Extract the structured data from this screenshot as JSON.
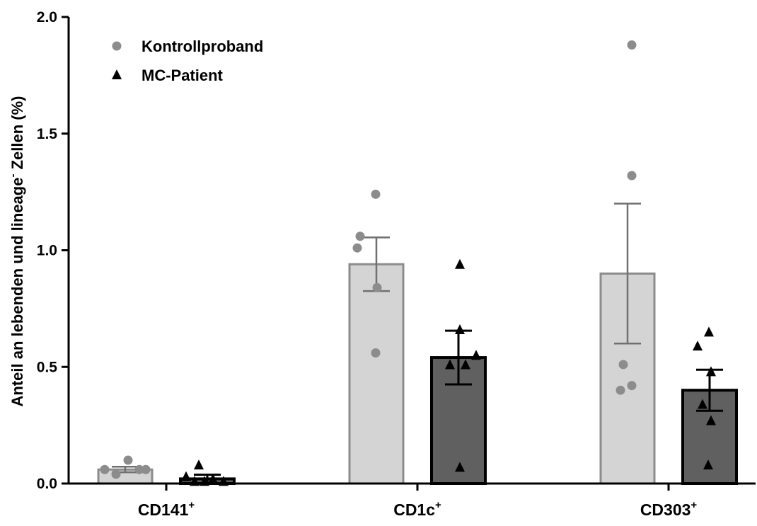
{
  "chart_data": {
    "type": "bar",
    "ylabel": "Anteil an lebenden und lineage",
    "ylabel_sup": "-",
    "ylabel_suffix": " Zellen (%)",
    "ylim": [
      0,
      2.0
    ],
    "yticks": [
      "0.0",
      "0.5",
      "1.0",
      "1.5",
      "2.0"
    ],
    "categories": [
      {
        "base": "CD141",
        "sup": "+"
      },
      {
        "base": "CD1c",
        "sup": "+"
      },
      {
        "base": "CD303",
        "sup": "+"
      }
    ],
    "legend_position": "top-left",
    "grid": false,
    "series": [
      {
        "name": "Kontrollproband",
        "marker": "circle",
        "bar_fill": "#d4d4d4",
        "bar_stroke": "#8c8c8c",
        "point_color": "#8c8c8c",
        "errorbar_color": "#707070",
        "means": [
          0.06,
          0.94,
          0.9
        ],
        "sem": [
          0.012,
          0.115,
          0.3
        ],
        "points": [
          [
            0.06,
            0.04,
            0.1,
            0.06,
            0.06
          ],
          [
            1.24,
            1.06,
            1.01,
            0.84,
            0.56
          ],
          [
            1.88,
            1.32,
            0.51,
            0.42,
            0.4
          ]
        ]
      },
      {
        "name": "MC-Patient",
        "marker": "triangle",
        "bar_fill": "#606060",
        "bar_stroke": "#000000",
        "point_color": "#000000",
        "errorbar_color": "#000000",
        "means": [
          0.02,
          0.54,
          0.4
        ],
        "sem": [
          0.018,
          0.115,
          0.088
        ],
        "points": [
          [
            0.03,
            0.01,
            0.01,
            0.02,
            0.08,
            0.01
          ],
          [
            0.94,
            0.66,
            0.55,
            0.51,
            0.51,
            0.07
          ],
          [
            0.65,
            0.59,
            0.48,
            0.34,
            0.27,
            0.08
          ]
        ]
      }
    ]
  }
}
